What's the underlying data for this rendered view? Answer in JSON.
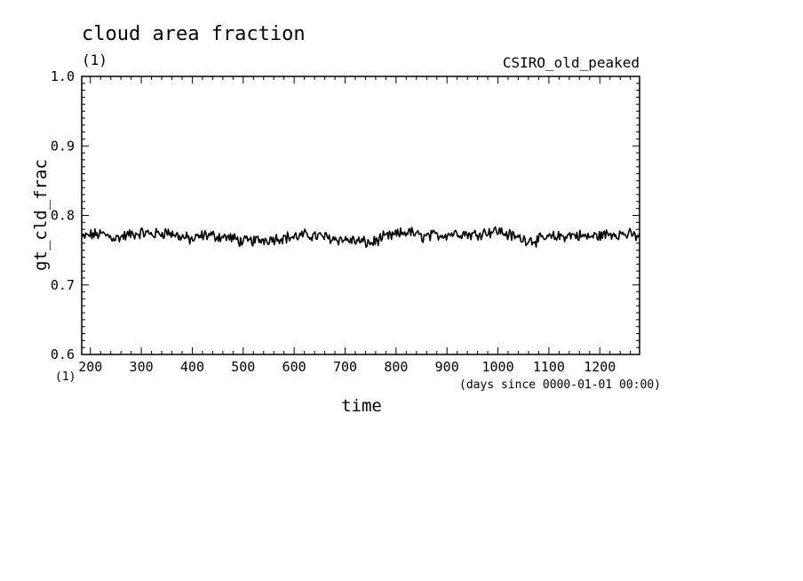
{
  "chart_data": {
    "type": "line",
    "title": "cloud area fraction",
    "units": "(1)",
    "source": "CSIRO_old_peaked",
    "xlabel": "time",
    "xunits": "(days since 0000-01-01 00:00)",
    "ylabel": "gt_cld_frac",
    "yunits": "(1)",
    "xlim": [
      183,
      1278
    ],
    "ylim": [
      0.6,
      1.0
    ],
    "xticks": [
      "200",
      "300",
      "400",
      "500",
      "600",
      "700",
      "800",
      "900",
      "1000",
      "1100",
      "1200"
    ],
    "yticks": [
      "0.6",
      "0.7",
      "0.8",
      "0.9",
      "1.0"
    ],
    "grid": false,
    "series": [
      {
        "color": "#000000",
        "x": [
          183,
          200,
          225,
          250,
          275,
          300,
          325,
          350,
          375,
          400,
          425,
          450,
          475,
          500,
          525,
          550,
          575,
          600,
          625,
          650,
          675,
          700,
          725,
          750,
          775,
          800,
          825,
          850,
          875,
          900,
          925,
          950,
          975,
          1000,
          1025,
          1050,
          1075,
          1100,
          1125,
          1150,
          1175,
          1200,
          1225,
          1250,
          1278
        ],
        "values": [
          0.768,
          0.772,
          0.773,
          0.767,
          0.772,
          0.775,
          0.773,
          0.776,
          0.77,
          0.765,
          0.772,
          0.77,
          0.768,
          0.762,
          0.764,
          0.766,
          0.768,
          0.769,
          0.772,
          0.77,
          0.767,
          0.765,
          0.763,
          0.76,
          0.768,
          0.772,
          0.777,
          0.769,
          0.771,
          0.773,
          0.775,
          0.772,
          0.776,
          0.778,
          0.771,
          0.766,
          0.764,
          0.768,
          0.77,
          0.772,
          0.769,
          0.771,
          0.774,
          0.773,
          0.77
        ]
      }
    ]
  }
}
